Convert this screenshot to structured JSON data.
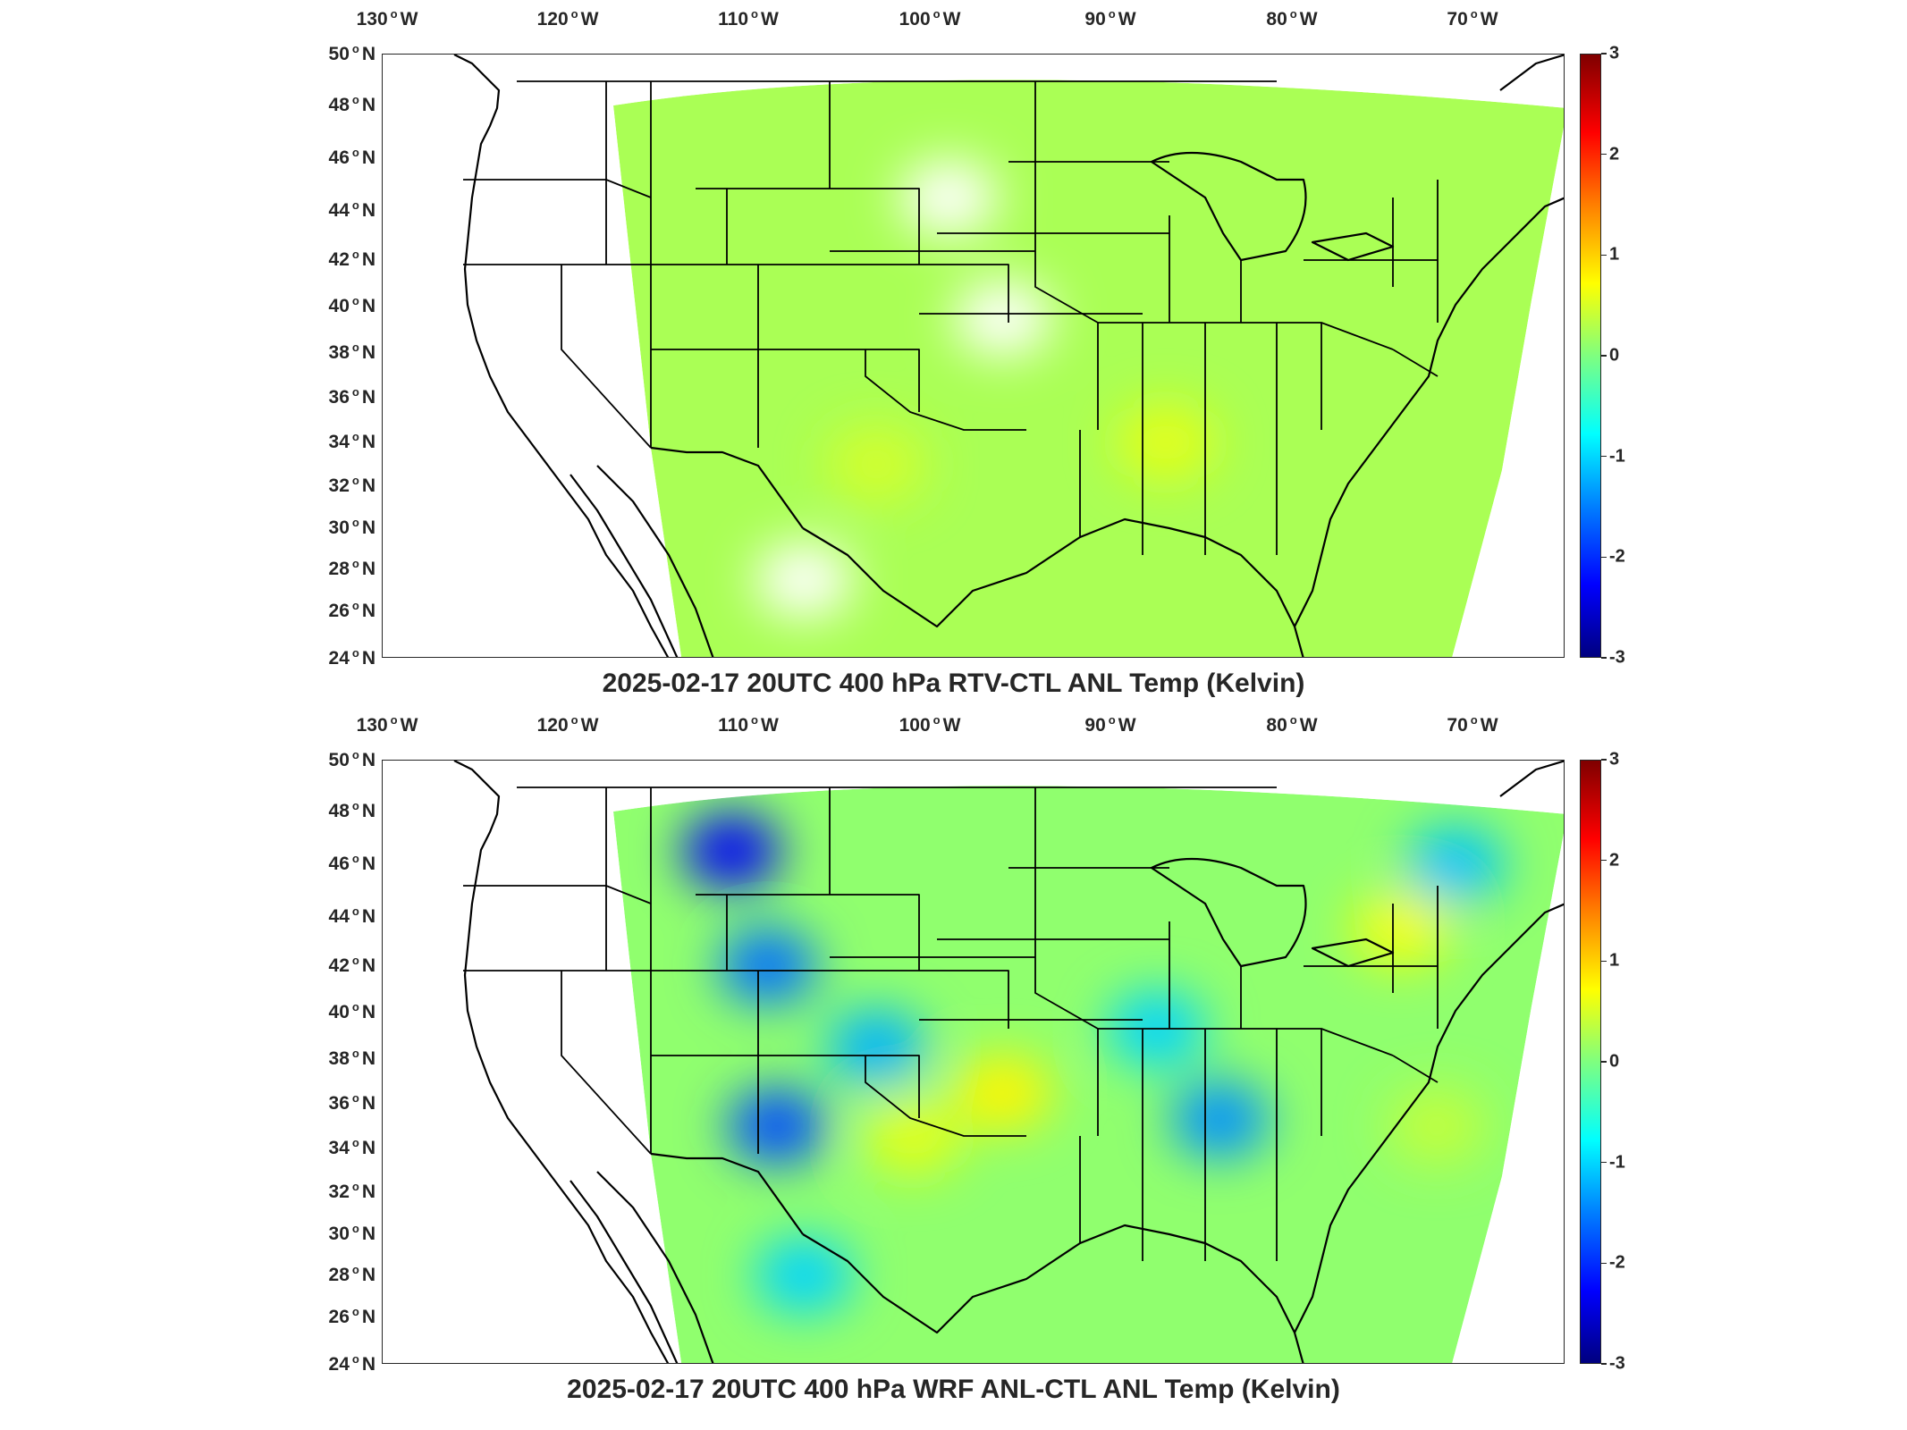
{
  "colors": {
    "colormap": [
      "#00007f",
      "#0000ff",
      "#007fff",
      "#00ffff",
      "#7fff7f",
      "#ffff00",
      "#ff7f00",
      "#ff0000",
      "#7f0000"
    ],
    "border": "#000000",
    "missing": "#ffffff"
  },
  "axes": {
    "lon_ticks": [
      "130",
      "120",
      "110",
      "100",
      "90",
      "80",
      "70"
    ],
    "lon_hemisphere": "W",
    "lat_ticks": [
      "50",
      "48",
      "46",
      "44",
      "42",
      "40",
      "38",
      "36",
      "34",
      "32",
      "30",
      "28",
      "26",
      "24"
    ],
    "lat_hemisphere": "N",
    "lon_range": [
      -131,
      -64.5
    ],
    "lat_range": [
      24,
      50
    ]
  },
  "colorbar": {
    "ticks": [
      "3",
      "2",
      "1",
      "0",
      "-1",
      "-2",
      "-3"
    ],
    "range": [
      -3,
      3
    ]
  },
  "panels": [
    {
      "title": "2025-02-17 20UTC 400 hPa RTV-CTL ANL Temp (Kelvin)",
      "field": "RTV-CTL",
      "typical_value": 0.25,
      "anomalies": [
        {
          "lon": -99,
          "lat": 44.5,
          "value": null
        },
        {
          "lon": -96,
          "lat": 39.5,
          "value": null
        },
        {
          "lon": -107,
          "lat": 27.5,
          "value": null
        },
        {
          "lon": -87,
          "lat": 34,
          "value": 0.6
        },
        {
          "lon": -103,
          "lat": 33,
          "value": 0.5
        }
      ]
    },
    {
      "title": "2025-02-17 20UTC 400 hPa WRF ANL-CTL ANL Temp (Kelvin)",
      "field": "WRF ANL-CTL",
      "typical_value": 0.1,
      "anomalies": [
        {
          "lon": -111,
          "lat": 46.5,
          "value": -2.3
        },
        {
          "lon": -109,
          "lat": 42,
          "value": -1.6
        },
        {
          "lon": -108.5,
          "lat": 35,
          "value": -1.8
        },
        {
          "lon": -103,
          "lat": 38.5,
          "value": -1.2
        },
        {
          "lon": -84,
          "lat": 35.3,
          "value": -1.4
        },
        {
          "lon": -87.5,
          "lat": 39.3,
          "value": -1.0
        },
        {
          "lon": -96,
          "lat": 36.5,
          "value": 0.8
        },
        {
          "lon": -101,
          "lat": 34.5,
          "value": 0.6
        },
        {
          "lon": -71,
          "lat": 46,
          "value": -1.1
        },
        {
          "lon": -74,
          "lat": 43.5,
          "value": 0.7
        },
        {
          "lon": -107,
          "lat": 28,
          "value": -1.0
        },
        {
          "lon": -72,
          "lat": 35,
          "value": 0.4
        }
      ]
    }
  ]
}
